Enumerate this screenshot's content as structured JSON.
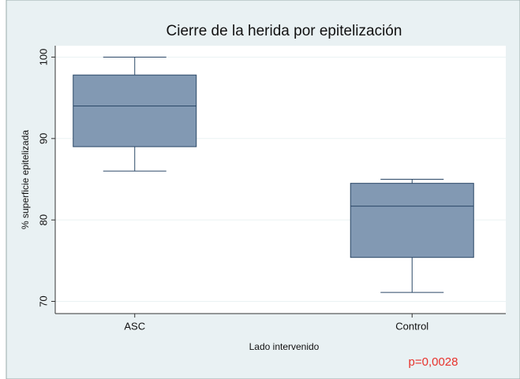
{
  "chart_data": {
    "type": "box",
    "title": "Cierre de la herida por epitelización",
    "x_label": "Lado intervenido",
    "y_label": "% superficie epitelizada",
    "annotation": "p=0,0028",
    "categories": [
      "ASC",
      "Control"
    ],
    "boxes": [
      {
        "min": 86,
        "q1": 89,
        "median": 94,
        "q3": 97.8,
        "max": 100
      },
      {
        "min": 71.1,
        "q1": 75.4,
        "median": 81.7,
        "q3": 84.5,
        "max": 85
      }
    ],
    "color": "#8299b3",
    "ylim": [
      68.5,
      101.4
    ],
    "yticks": [
      70,
      80,
      90,
      100
    ],
    "grid": true
  }
}
